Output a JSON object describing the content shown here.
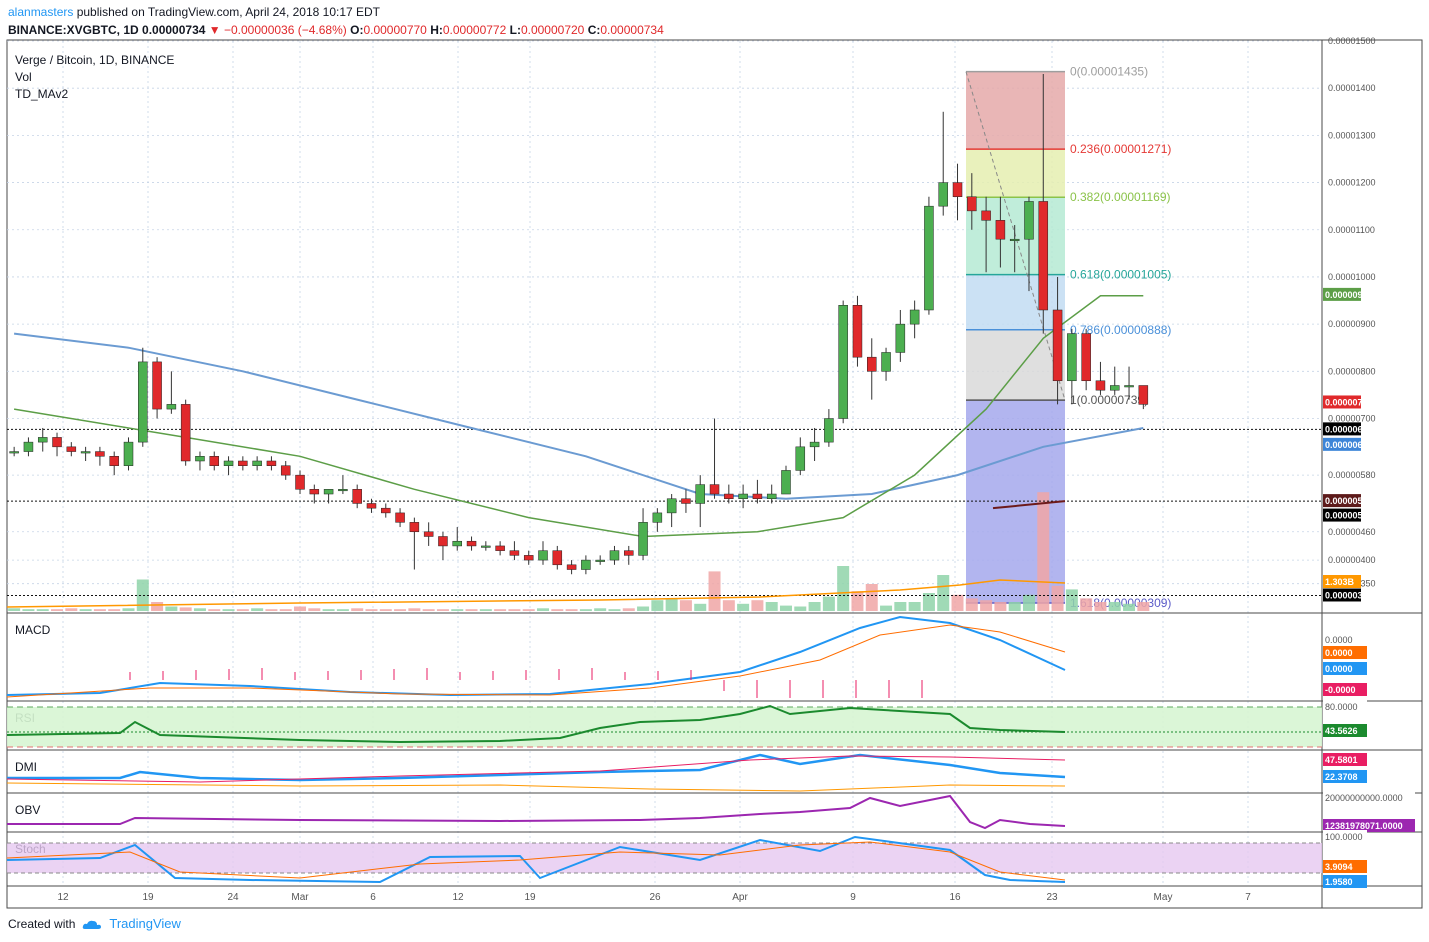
{
  "header": {
    "author": "alanmasters",
    "published_text": " published on TradingView.com, April 24, 2018 10:17 EDT",
    "symbol_line": "BINANCE:XVGBTC, 1D",
    "last": "0.00000734",
    "change": "▼ −0.00000036 (−4.68%)",
    "o_label": "O:",
    "o": "0.00000770",
    "h_label": "H:",
    "h": "0.00000772",
    "l_label": "L:",
    "l": "0.00000720",
    "c_label": "C:",
    "c": "0.00000734"
  },
  "legend": {
    "title": "Verge / Bitcoin, 1D, BINANCE",
    "vol": "Vol",
    "ma": "TD_MAv2"
  },
  "footer": {
    "created_with": "Created with",
    "brand": "TradingView"
  },
  "colors": {
    "up": "#4caf50",
    "down": "#e0292b",
    "ma_green": "#5c9e47",
    "ma_blue": "#6b9bd2",
    "grid": "#c6d4e6",
    "text": "#131722"
  },
  "panes": {
    "macd": "MACD",
    "rsi": "RSI",
    "dmi": "DMI",
    "obv": "OBV",
    "stoch": "Stoch"
  },
  "price_ticks": [
    "0.00001500",
    "0.00001400",
    "0.00001300",
    "0.00001200",
    "0.00001100",
    "0.00001000",
    "0.00000900",
    "0.00000800",
    "0.00000700",
    "0.00000580",
    "0.00000460",
    "0.00000400",
    "0.00000350"
  ],
  "axis_badges": [
    {
      "text": "0.00000962",
      "bg": "#5c9e47",
      "fg": "#ffffff"
    },
    {
      "text": "0.00000734",
      "bg": "#e0292b",
      "fg": "#ffffff"
    },
    {
      "text": "0.00000677",
      "bg": "#000000",
      "fg": "#ffffff"
    },
    {
      "text": "0.00000676",
      "bg": "#3d85d8",
      "fg": "#ffffff"
    },
    {
      "text": "0.00000525",
      "bg": "#5d1a1a",
      "fg": "#ffffff"
    },
    {
      "text": "0.00000524",
      "bg": "#000000",
      "fg": "#ffffff"
    },
    {
      "text": "1.303B",
      "bg": "#ff9800",
      "fg": "#ffffff"
    },
    {
      "text": "0.00000325",
      "bg": "#000000",
      "fg": "#ffffff"
    }
  ],
  "macd_labels": [
    {
      "text": "0.0000",
      "bg": "#ffffff",
      "fg": "#555555"
    },
    {
      "text": "0.0000",
      "bg": "#ff6d00",
      "fg": "#ffffff"
    },
    {
      "text": "0.0000",
      "bg": "#2196f3",
      "fg": "#ffffff"
    },
    {
      "text": "-0.0000",
      "bg": "#e91e63",
      "fg": "#ffffff"
    }
  ],
  "rsi_labels": [
    {
      "text": "80.0000",
      "bg": "#ffffff",
      "fg": "#555555"
    },
    {
      "text": "43.5626",
      "bg": "#1b8a2e",
      "fg": "#ffffff"
    }
  ],
  "dmi_labels": [
    {
      "text": "47.5801",
      "bg": "#e91e63",
      "fg": "#ffffff"
    },
    {
      "text": "22.3708",
      "bg": "#2196f3",
      "fg": "#ffffff"
    }
  ],
  "obv_labels": [
    {
      "text": "20000000000.0000",
      "bg": "#ffffff",
      "fg": "#555555"
    },
    {
      "text": "12381978071.0000",
      "bg": "#9c27b0",
      "fg": "#ffffff"
    }
  ],
  "stoch_labels": [
    {
      "text": "100.0000",
      "bg": "#ffffff",
      "fg": "#555555"
    },
    {
      "text": "3.9094",
      "bg": "#ff6d00",
      "fg": "#ffffff"
    },
    {
      "text": "1.9580",
      "bg": "#2196f3",
      "fg": "#ffffff"
    }
  ],
  "x_ticks": [
    "12",
    "19",
    "24",
    "Mar",
    "6",
    "12",
    "19",
    "26",
    "Apr",
    "9",
    "16",
    "23",
    "May",
    "7"
  ],
  "chart_data": {
    "type": "candlestick",
    "title": "Verge / Bitcoin, 1D, BINANCE",
    "y_unit": "BTC",
    "ylim": [
      2.9e-06,
      1.5e-05
    ],
    "x_range": [
      "2018-02-08",
      "2018-05-11"
    ],
    "candles_start": "2018-02-08",
    "candles": [
      [
        6.3e-06,
        6.4e-06,
        6.2e-06,
        6.3e-06
      ],
      [
        6.3e-06,
        6.6e-06,
        6.2e-06,
        6.5e-06
      ],
      [
        6.5e-06,
        6.8e-06,
        6.3e-06,
        6.6e-06
      ],
      [
        6.6e-06,
        6.7e-06,
        6.2e-06,
        6.4e-06
      ],
      [
        6.4e-06,
        6.5e-06,
        6.2e-06,
        6.3e-06
      ],
      [
        6.3e-06,
        6.4e-06,
        6.1e-06,
        6.3e-06
      ],
      [
        6.3e-06,
        6.4e-06,
        6e-06,
        6.2e-06
      ],
      [
        6.2e-06,
        6.3e-06,
        5.8e-06,
        6e-06
      ],
      [
        6e-06,
        6.6e-06,
        5.9e-06,
        6.5e-06
      ],
      [
        6.5e-06,
        8.5e-06,
        6.4e-06,
        8.2e-06
      ],
      [
        8.2e-06,
        8.3e-06,
        7e-06,
        7.2e-06
      ],
      [
        7.2e-06,
        8e-06,
        7.1e-06,
        7.3e-06
      ],
      [
        7.3e-06,
        7.4e-06,
        6e-06,
        6.1e-06
      ],
      [
        6.1e-06,
        6.3e-06,
        5.9e-06,
        6.2e-06
      ],
      [
        6.2e-06,
        6.3e-06,
        5.9e-06,
        6e-06
      ],
      [
        6e-06,
        6.2e-06,
        5.8e-06,
        6.1e-06
      ],
      [
        6.1e-06,
        6.2e-06,
        5.9e-06,
        6e-06
      ],
      [
        6e-06,
        6.2e-06,
        5.9e-06,
        6.1e-06
      ],
      [
        6.1e-06,
        6.2e-06,
        5.9e-06,
        6e-06
      ],
      [
        6e-06,
        6.1e-06,
        5.7e-06,
        5.8e-06
      ],
      [
        5.8e-06,
        5.9e-06,
        5.4e-06,
        5.5e-06
      ],
      [
        5.5e-06,
        5.6e-06,
        5.2e-06,
        5.4e-06
      ],
      [
        5.4e-06,
        5.5e-06,
        5.2e-06,
        5.5e-06
      ],
      [
        5.5e-06,
        5.8e-06,
        5.4e-06,
        5.5e-06
      ],
      [
        5.5e-06,
        5.6e-06,
        5.1e-06,
        5.2e-06
      ],
      [
        5.2e-06,
        5.3e-06,
        5e-06,
        5.1e-06
      ],
      [
        5.1e-06,
        5.2e-06,
        4.9e-06,
        5e-06
      ],
      [
        5e-06,
        5.1e-06,
        4.7e-06,
        4.8e-06
      ],
      [
        4.8e-06,
        4.9e-06,
        3.8e-06,
        4.6e-06
      ],
      [
        4.6e-06,
        4.8e-06,
        4.3e-06,
        4.5e-06
      ],
      [
        4.5e-06,
        4.6e-06,
        4e-06,
        4.3e-06
      ],
      [
        4.3e-06,
        4.7e-06,
        4.2e-06,
        4.4e-06
      ],
      [
        4.4e-06,
        4.5e-06,
        4.2e-06,
        4.3e-06
      ],
      [
        4.3e-06,
        4.4e-06,
        4.2e-06,
        4.3e-06
      ],
      [
        4.3e-06,
        4.4e-06,
        4.1e-06,
        4.2e-06
      ],
      [
        4.2e-06,
        4.4e-06,
        4e-06,
        4.1e-06
      ],
      [
        4.1e-06,
        4.2e-06,
        3.9e-06,
        4e-06
      ],
      [
        4e-06,
        4.4e-06,
        3.9e-06,
        4.2e-06
      ],
      [
        4.2e-06,
        4.3e-06,
        3.8e-06,
        3.9e-06
      ],
      [
        3.9e-06,
        4e-06,
        3.7e-06,
        3.8e-06
      ],
      [
        3.8e-06,
        4.1e-06,
        3.7e-06,
        4e-06
      ],
      [
        4e-06,
        4.1e-06,
        3.9e-06,
        4e-06
      ],
      [
        4e-06,
        4.3e-06,
        3.9e-06,
        4.2e-06
      ],
      [
        4.2e-06,
        4.3e-06,
        3.9e-06,
        4.1e-06
      ],
      [
        4.1e-06,
        5.1e-06,
        4e-06,
        4.8e-06
      ],
      [
        4.8e-06,
        5.1e-06,
        4.6e-06,
        5e-06
      ],
      [
        5e-06,
        5.4e-06,
        4.7e-06,
        5.3e-06
      ],
      [
        5.3e-06,
        5.5e-06,
        5e-06,
        5.2e-06
      ],
      [
        5.2e-06,
        5.8e-06,
        4.7e-06,
        5.6e-06
      ],
      [
        5.6e-06,
        7e-06,
        5.3e-06,
        5.4e-06
      ],
      [
        5.4e-06,
        5.6e-06,
        5.2e-06,
        5.3e-06
      ],
      [
        5.3e-06,
        5.6e-06,
        5.1e-06,
        5.4e-06
      ],
      [
        5.4e-06,
        5.7e-06,
        5.2e-06,
        5.3e-06
      ],
      [
        5.3e-06,
        5.6e-06,
        5.2e-06,
        5.4e-06
      ],
      [
        5.4e-06,
        6e-06,
        5.4e-06,
        5.9e-06
      ],
      [
        5.9e-06,
        6.6e-06,
        5.8e-06,
        6.4e-06
      ],
      [
        6.4e-06,
        6.8e-06,
        6.1e-06,
        6.5e-06
      ],
      [
        6.5e-06,
        7.2e-06,
        6.4e-06,
        7e-06
      ],
      [
        7e-06,
        9.5e-06,
        6.9e-06,
        9.4e-06
      ],
      [
        9.4e-06,
        9.6e-06,
        8.1e-06,
        8.3e-06
      ],
      [
        8.3e-06,
        8.7e-06,
        7.4e-06,
        8e-06
      ],
      [
        8e-06,
        8.5e-06,
        7.8e-06,
        8.4e-06
      ],
      [
        8.4e-06,
        9.3e-06,
        8.2e-06,
        9e-06
      ],
      [
        9e-06,
        9.5e-06,
        8.7e-06,
        9.3e-06
      ],
      [
        9.3e-06,
        1.17e-05,
        9.2e-06,
        1.15e-05
      ],
      [
        1.15e-05,
        1.35e-05,
        1.13e-05,
        1.2e-05
      ],
      [
        1.2e-05,
        1.24e-05,
        1.12e-05,
        1.17e-05
      ],
      [
        1.17e-05,
        1.22e-05,
        1.1e-05,
        1.14e-05
      ],
      [
        1.14e-05,
        1.17e-05,
        1.01e-05,
        1.12e-05
      ],
      [
        1.12e-05,
        1.17e-05,
        1.02e-05,
        1.08e-05
      ],
      [
        1.08e-05,
        1.11e-05,
        1.01e-05,
        1.08e-05
      ],
      [
        1.08e-05,
        1.17e-05,
        9.7e-06,
        1.16e-05
      ],
      [
        1.16e-05,
        1.43e-05,
        8.8e-06,
        9.3e-06
      ],
      [
        9.3e-06,
        1e-05,
        7.3e-06,
        7.8e-06
      ],
      [
        7.8e-06,
        8.9e-06,
        7.3e-06,
        8.8e-06
      ],
      [
        8.8e-06,
        8.9e-06,
        7.6e-06,
        7.8e-06
      ],
      [
        7.8e-06,
        8.2e-06,
        7.5e-06,
        7.6e-06
      ],
      [
        7.6e-06,
        8.1e-06,
        7.5e-06,
        7.7e-06
      ],
      [
        7.7e-06,
        8.1e-06,
        7.4e-06,
        7.7e-06
      ],
      [
        7.7e-06,
        7.7e-06,
        7.2e-06,
        7.3e-06
      ]
    ],
    "ma_green": [
      [
        0,
        7.2e-06
      ],
      [
        12,
        6.6e-06
      ],
      [
        20,
        6.2e-06
      ],
      [
        28,
        5.5e-06
      ],
      [
        36,
        4.9e-06
      ],
      [
        44,
        4.5e-06
      ],
      [
        52,
        4.6e-06
      ],
      [
        58,
        4.9e-06
      ],
      [
        63,
        5.8e-06
      ],
      [
        68,
        7.2e-06
      ],
      [
        72,
        8.7e-06
      ],
      [
        76,
        9.6e-06
      ],
      [
        79,
        9.6e-06
      ]
    ],
    "ma_blue": [
      [
        0,
        8.8e-06
      ],
      [
        8,
        8.5e-06
      ],
      [
        16,
        8e-06
      ],
      [
        24,
        7.4e-06
      ],
      [
        32,
        6.8e-06
      ],
      [
        40,
        6.2e-06
      ],
      [
        48,
        5.4e-06
      ],
      [
        54,
        5.3e-06
      ],
      [
        60,
        5.4e-06
      ],
      [
        66,
        5.8e-06
      ],
      [
        72,
        6.4e-06
      ],
      [
        79,
        6.8e-06
      ]
    ],
    "fibonacci": {
      "levels": [
        {
          "label": "0(0.00001435)",
          "value": 1.435e-05,
          "color": "#9e9e9e",
          "fill": "#e5a9a9"
        },
        {
          "label": "0.236(0.00001271)",
          "value": 1.271e-05,
          "color": "#e53935",
          "fill": "#e5efb0"
        },
        {
          "label": "0.382(0.00001169)",
          "value": 1.169e-05,
          "color": "#8bc34a",
          "fill": "#b5ead3"
        },
        {
          "label": "0.618(0.00001005)",
          "value": 1.005e-05,
          "color": "#26a69a",
          "fill": "#c2dcf2"
        },
        {
          "label": "0.786(0.00000888)",
          "value": 8.88e-06,
          "color": "#4a90d9",
          "fill": "#d9d9d9"
        },
        {
          "label": "1(0.00000739)",
          "value": 7.39e-06,
          "color": "#555555",
          "fill": "#a4a8ec"
        },
        {
          "label": "1.618(0.00000309)",
          "value": 3.09e-06,
          "color": "#5c5cc8",
          "fill": null
        }
      ]
    },
    "hlines": [
      6.77e-06,
      5.25e-06,
      3.25e-06
    ]
  }
}
